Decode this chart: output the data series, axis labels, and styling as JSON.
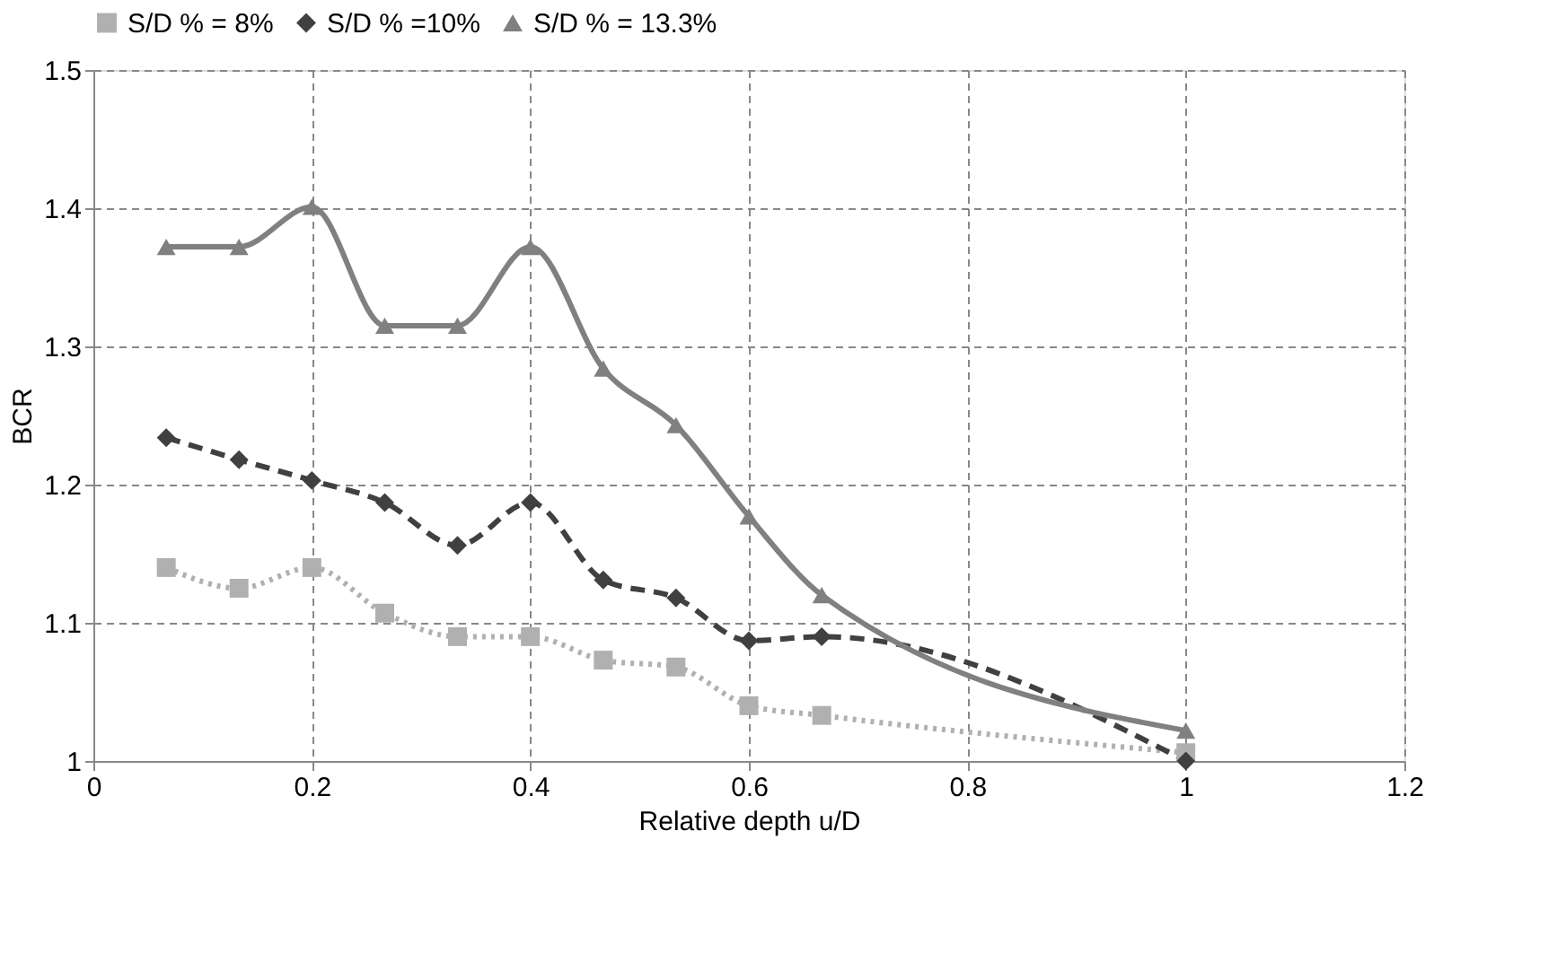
{
  "chart_data": {
    "type": "line",
    "xlabel": "Relative depth u/D",
    "ylabel": "BCR",
    "xlim": [
      0,
      1.2
    ],
    "xticks": [
      0,
      0.2,
      0.4,
      0.6,
      0.8,
      1,
      1.2
    ],
    "ylim": [
      1,
      1.5
    ],
    "yticks": [
      1,
      1.1,
      1.2,
      1.3,
      1.4,
      1.5
    ],
    "x": [
      0.0667,
      0.1333,
      0.2,
      0.2667,
      0.3333,
      0.4,
      0.4667,
      0.5333,
      0.6,
      0.6667,
      1
    ],
    "grid": true,
    "legend": "top",
    "series": [
      {
        "name": "S/D % = 8%",
        "color": "#b0b0b0",
        "marker": "square",
        "line_style": "dotted",
        "values": [
          1.14,
          1.125,
          1.14,
          1.107,
          1.09,
          1.09,
          1.073,
          1.068,
          1.04,
          1.033,
          1.006
        ]
      },
      {
        "name": "S/D % =10%",
        "color": "#404040",
        "marker": "diamond",
        "line_style": "dashed",
        "values": [
          1.234,
          1.218,
          1.203,
          1.187,
          1.156,
          1.187,
          1.131,
          1.118,
          1.087,
          1.09,
          1.0
        ]
      },
      {
        "name": "S/D % = 13.3%",
        "color": "#808080",
        "marker": "triangle",
        "line_style": "solid",
        "values": [
          1.372,
          1.372,
          1.401,
          1.315,
          1.315,
          1.372,
          1.284,
          1.243,
          1.177,
          1.12,
          1.022
        ]
      }
    ]
  }
}
